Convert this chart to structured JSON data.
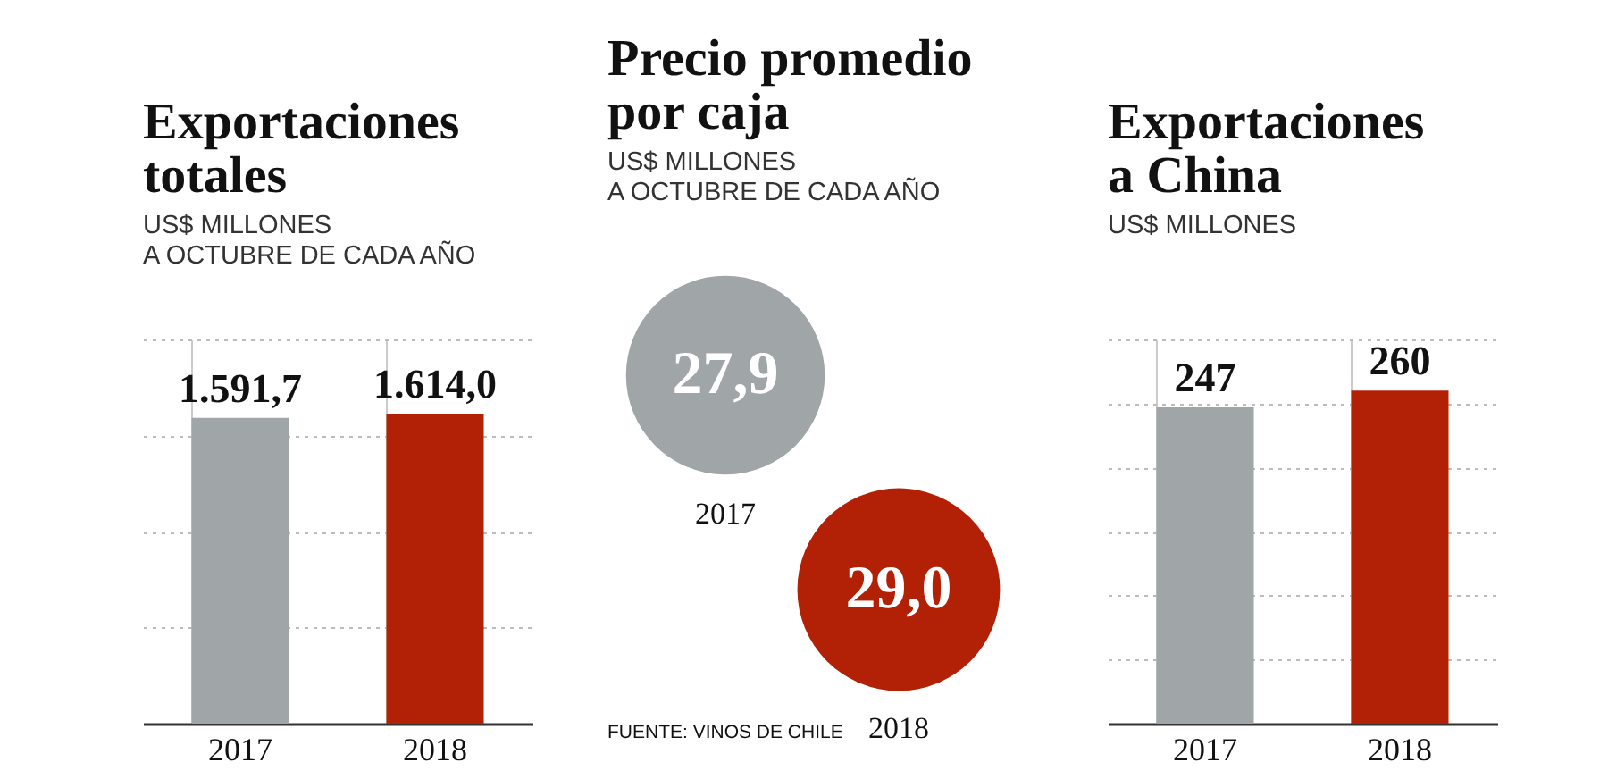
{
  "chart_data": [
    {
      "type": "bar",
      "title": "Exportaciones\ntotales",
      "subtitle": "US$ MILLONES\nA OCTUBRE DE CADA AÑO",
      "categories": [
        "2017",
        "2018"
      ],
      "values": [
        1591.7,
        1614.0
      ],
      "colors": [
        "#a0a5a8",
        "#b22106"
      ],
      "value_labels": [
        "1.591,7",
        "1.614,0"
      ],
      "ylim": [
        0,
        2000
      ],
      "yticks": [
        {
          "value": 500,
          "label": null
        },
        {
          "value": 1000,
          "label": null
        },
        {
          "value": 1500,
          "label": null
        },
        {
          "value": 2000,
          "label": null
        }
      ],
      "grid": true,
      "tick_labels": "x"
    },
    {
      "type": "other",
      "title": "Precio promedio\npor caja",
      "subtitle": "US$ MILLONES\nA OCTUBRE DE CADA AÑO",
      "categories": [
        "2017",
        "2018"
      ],
      "values": [
        27.9,
        29.0
      ],
      "colors": [
        "#a0a5a8",
        "#b22106"
      ],
      "value_labels": [
        "27,9",
        "29,0"
      ],
      "annotations": [
        "FUENTE: VINOS DE CHILE"
      ]
    },
    {
      "type": "bar",
      "title": "Exportaciones\na China",
      "subtitle": "US$ MILLONES",
      "categories": [
        "2017",
        "2018"
      ],
      "values": [
        247,
        260
      ],
      "colors": [
        "#a0a5a8",
        "#b22106"
      ],
      "value_labels": [
        "247",
        "260"
      ],
      "ylim": [
        0,
        300
      ],
      "yticks": [
        {
          "value": 50,
          "label": null
        },
        {
          "value": 100,
          "label": null
        },
        {
          "value": 150,
          "label": null
        },
        {
          "value": 200,
          "label": null
        },
        {
          "value": 250,
          "label": null
        },
        {
          "value": 300,
          "label": null
        }
      ],
      "grid": true,
      "tick_labels": "x"
    }
  ]
}
